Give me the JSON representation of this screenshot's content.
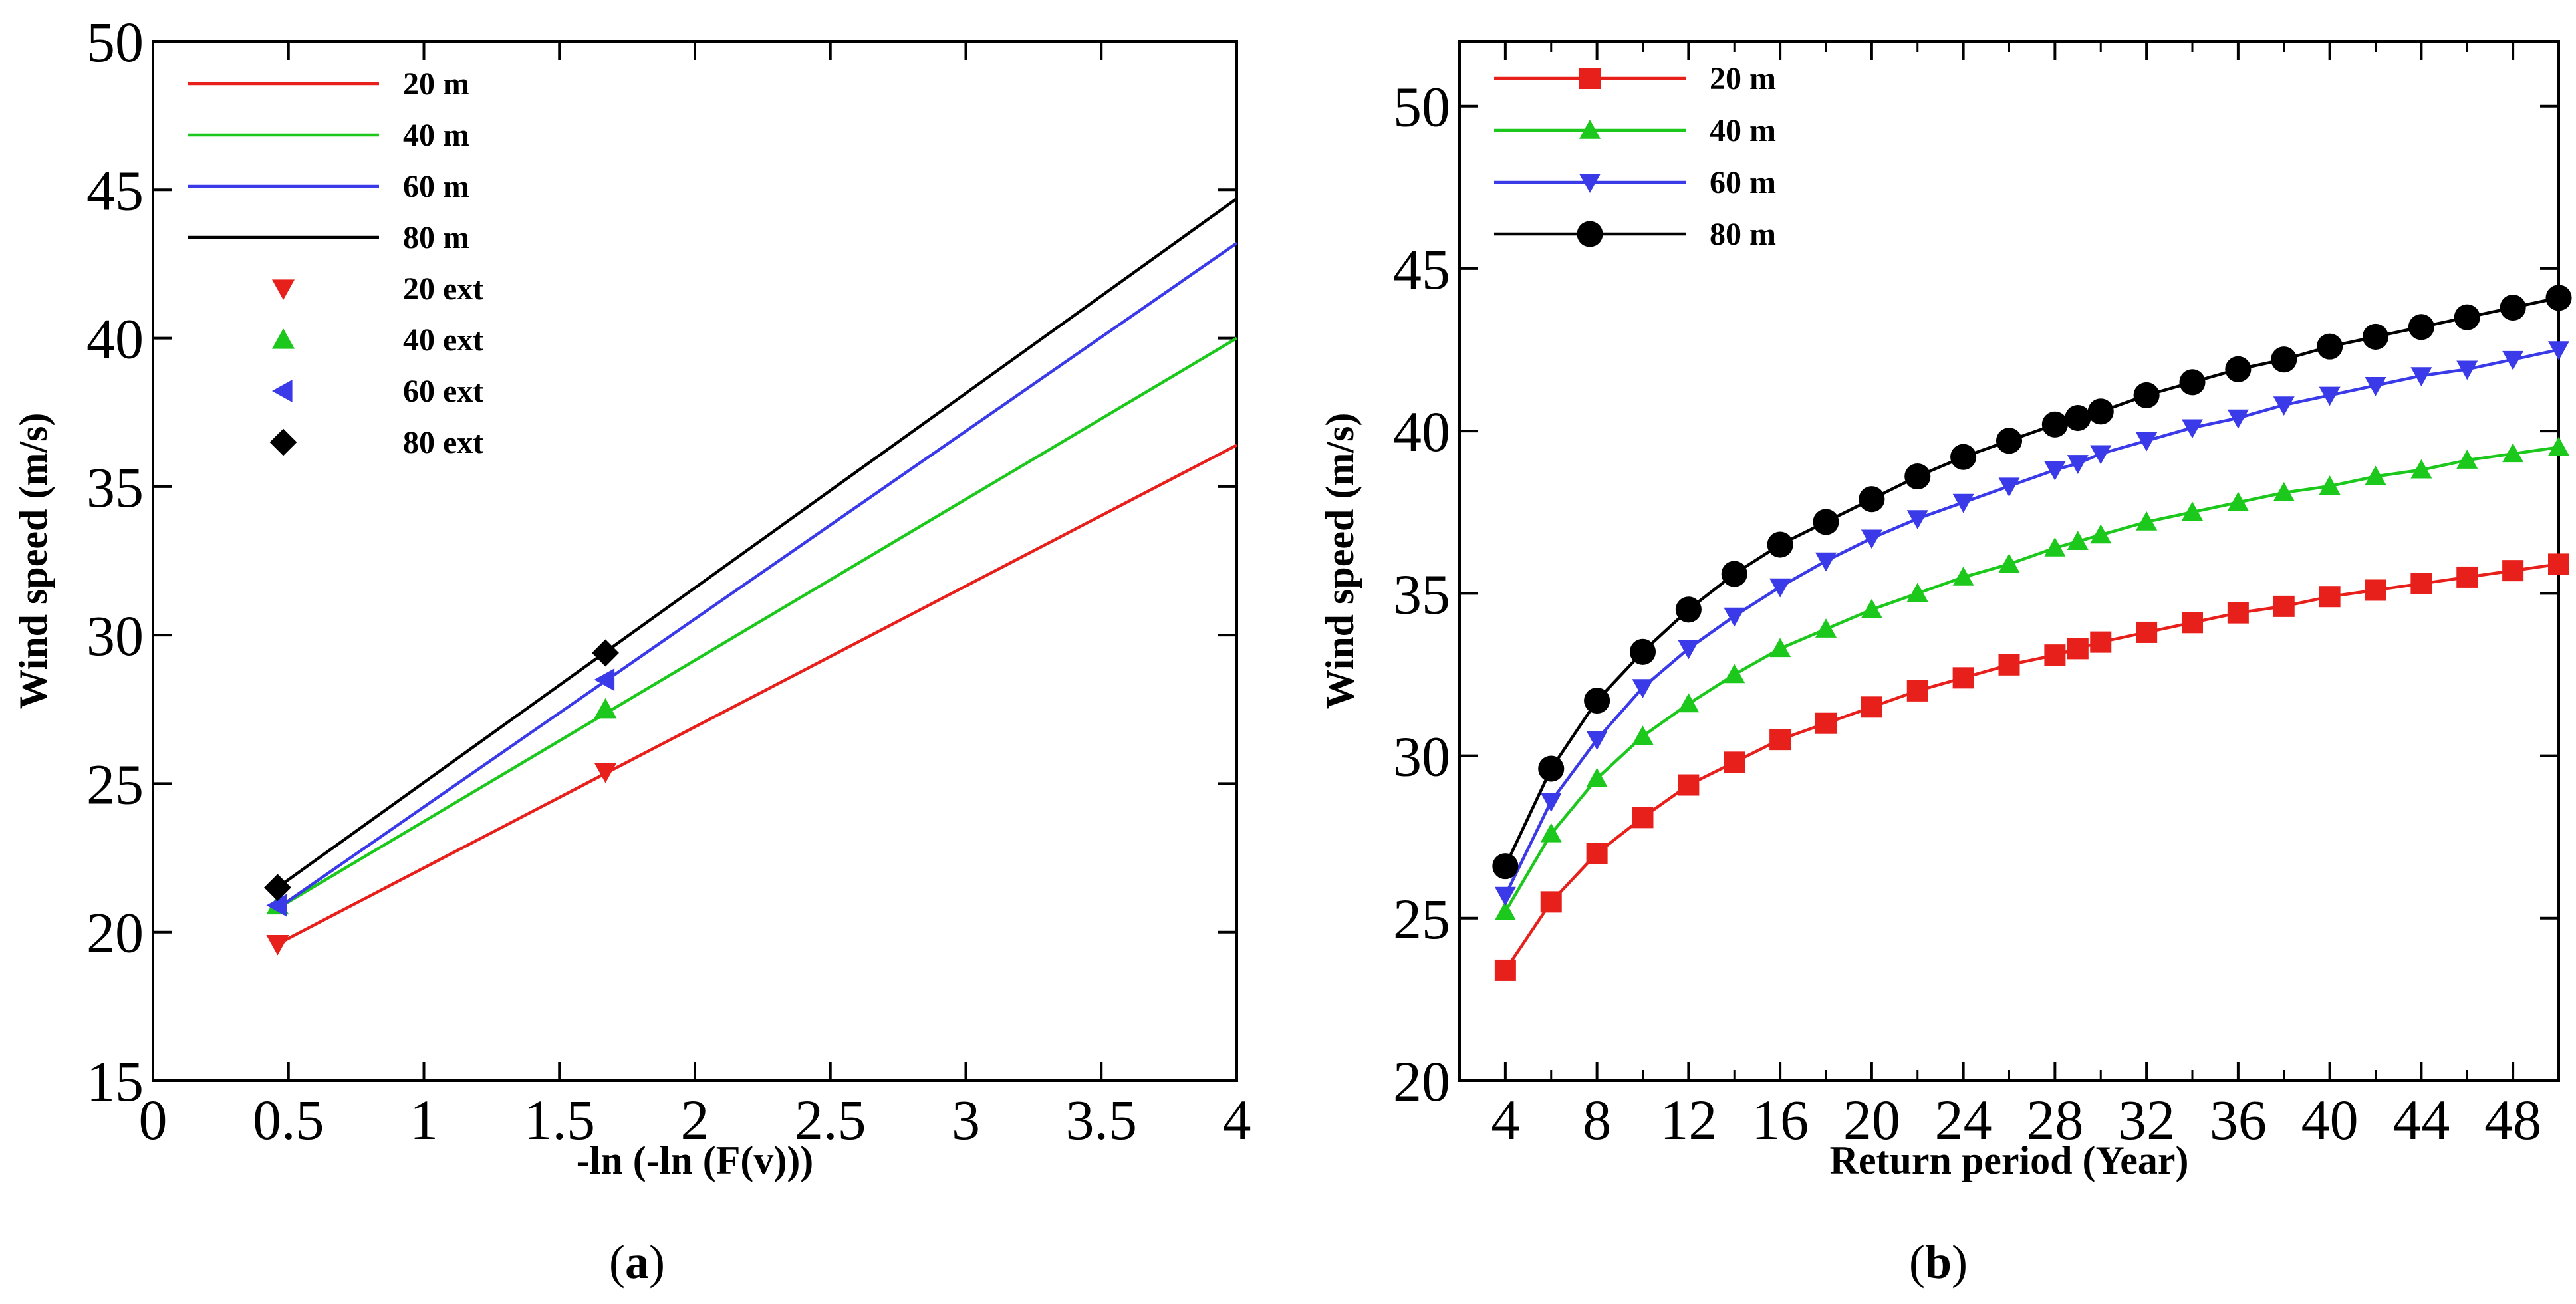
{
  "chart_data": [
    {
      "type": "line",
      "caption": "a",
      "xlabel": "-ln (-ln (F(v)))",
      "ylabel": "Wind speed (m/s)",
      "xlim": [
        0,
        4
      ],
      "ylim": [
        15,
        50
      ],
      "xticks": [
        0,
        0.5,
        1,
        1.5,
        2,
        2.5,
        3,
        3.5,
        4
      ],
      "xtick_labels": [
        "0",
        "0.5",
        "1",
        "1.5",
        "2",
        "2.5",
        "3",
        "3.5",
        "4"
      ],
      "yticks": [
        15,
        20,
        25,
        30,
        35,
        40,
        45,
        50
      ],
      "ytick_labels": [
        "15",
        "20",
        "25",
        "30",
        "35",
        "40",
        "45",
        "50"
      ],
      "grid": false,
      "legend_position": "top-left",
      "series": [
        {
          "name": "20 m",
          "color": "#e8201c",
          "marker": "none",
          "x": [
            0.46,
            4.0
          ],
          "y": [
            19.6,
            36.4
          ]
        },
        {
          "name": "40 m",
          "color": "#1cc81c",
          "marker": "none",
          "x": [
            0.46,
            4.0
          ],
          "y": [
            20.8,
            40.0
          ]
        },
        {
          "name": "60 m",
          "color": "#3a3ae8",
          "marker": "none",
          "x": [
            0.46,
            4.0
          ],
          "y": [
            20.8,
            43.2
          ]
        },
        {
          "name": "80 m",
          "color": "#000000",
          "marker": "none",
          "x": [
            0.46,
            4.0
          ],
          "y": [
            21.5,
            44.7
          ]
        },
        {
          "name": "20 ext",
          "color": "#e8201c",
          "marker": "triangle-down",
          "x": [
            0.46,
            1.67
          ],
          "y": [
            19.6,
            25.4
          ]
        },
        {
          "name": "40 ext",
          "color": "#1cc81c",
          "marker": "triangle-up",
          "x": [
            0.46,
            1.67
          ],
          "y": [
            20.9,
            27.5
          ]
        },
        {
          "name": "60 ext",
          "color": "#3a3ae8",
          "marker": "triangle-left",
          "x": [
            0.46,
            1.67
          ],
          "y": [
            20.9,
            28.5
          ]
        },
        {
          "name": "80 ext",
          "color": "#000000",
          "marker": "diamond",
          "x": [
            0.46,
            1.67
          ],
          "y": [
            21.5,
            29.4
          ]
        }
      ]
    },
    {
      "type": "line",
      "caption": "b",
      "xlabel": "Return period (Year)",
      "ylabel": "Wind speed (m/s)",
      "xlim": [
        2,
        50
      ],
      "ylim": [
        20,
        52
      ],
      "xticks": [
        4,
        8,
        12,
        16,
        20,
        24,
        28,
        32,
        36,
        40,
        44,
        48
      ],
      "xtick_labels": [
        "4",
        "8",
        "12",
        "16",
        "20",
        "24",
        "28",
        "32",
        "36",
        "40",
        "44",
        "48"
      ],
      "xminor": [
        6,
        10,
        14,
        18,
        22,
        26,
        30,
        34,
        38,
        42,
        46
      ],
      "yticks": [
        20,
        25,
        30,
        35,
        40,
        45,
        50
      ],
      "ytick_labels": [
        "20",
        "25",
        "30",
        "35",
        "40",
        "45",
        "50"
      ],
      "grid": false,
      "legend_position": "top-left",
      "x": [
        4,
        6,
        8,
        10,
        12,
        14,
        16,
        18,
        20,
        22,
        24,
        26,
        28,
        29,
        30,
        32,
        34,
        36,
        38,
        40,
        42,
        44,
        46,
        48,
        50
      ],
      "series": [
        {
          "name": "20 m",
          "color": "#e8201c",
          "marker": "square",
          "y": [
            23.4,
            25.5,
            27.0,
            28.1,
            29.1,
            29.8,
            30.5,
            31.0,
            31.5,
            32.0,
            32.4,
            32.8,
            33.1,
            33.3,
            33.5,
            33.8,
            34.1,
            34.4,
            34.6,
            34.9,
            35.1,
            35.3,
            35.5,
            35.7,
            35.9
          ]
        },
        {
          "name": "40 m",
          "color": "#1cc81c",
          "marker": "triangle-up",
          "y": [
            25.2,
            27.6,
            29.3,
            30.6,
            31.6,
            32.5,
            33.3,
            33.9,
            34.5,
            35.0,
            35.5,
            35.9,
            36.4,
            36.6,
            36.8,
            37.2,
            37.5,
            37.8,
            38.1,
            38.3,
            38.6,
            38.8,
            39.1,
            39.3,
            39.5
          ]
        },
        {
          "name": "60 m",
          "color": "#3a3ae8",
          "marker": "triangle-down",
          "y": [
            25.7,
            28.6,
            30.5,
            32.1,
            33.3,
            34.3,
            35.2,
            36.0,
            36.7,
            37.3,
            37.8,
            38.3,
            38.8,
            39.0,
            39.3,
            39.7,
            40.1,
            40.4,
            40.8,
            41.1,
            41.4,
            41.7,
            41.9,
            42.2,
            42.5
          ]
        },
        {
          "name": "80 m",
          "color": "#000000",
          "marker": "circle",
          "y": [
            26.6,
            29.6,
            31.7,
            33.2,
            34.5,
            35.6,
            36.5,
            37.2,
            37.9,
            38.6,
            39.2,
            39.7,
            40.2,
            40.4,
            40.6,
            41.1,
            41.5,
            41.9,
            42.2,
            42.6,
            42.9,
            43.2,
            43.5,
            43.8,
            44.1
          ]
        }
      ]
    }
  ]
}
